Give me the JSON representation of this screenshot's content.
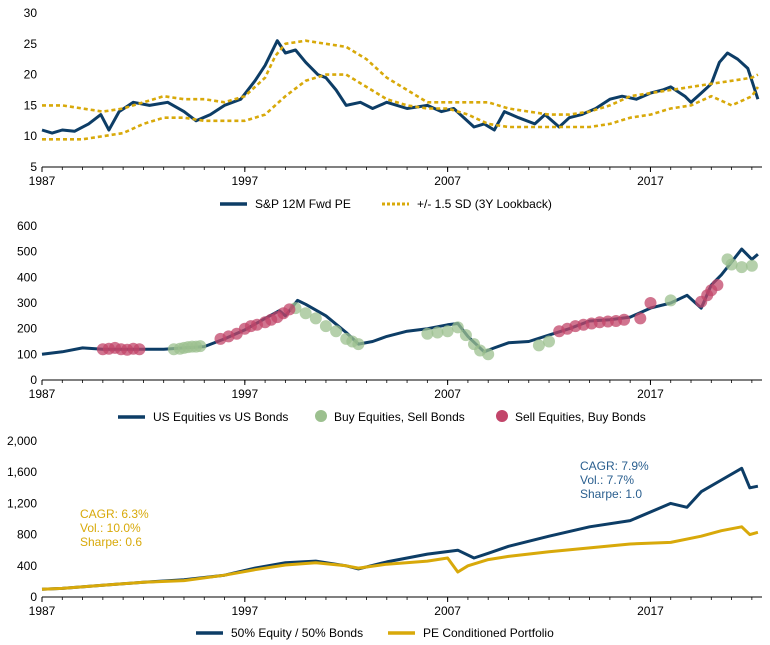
{
  "colors": {
    "navy": "#0d3d66",
    "gold": "#d8a90a",
    "green": "#9cc08f",
    "red": "#c2456a",
    "axis": "#000000"
  },
  "chart_data": [
    {
      "id": "pe",
      "type": "line",
      "ylim": [
        5,
        30
      ],
      "yticks": [
        "5",
        "10",
        "15",
        "20",
        "25",
        "30"
      ],
      "xlim": [
        1987,
        2022.5
      ],
      "xticks": [
        "1987",
        "1997",
        "2007",
        "2017"
      ],
      "legend_position": "bottom",
      "series": [
        {
          "name": "S&P 12M Fwd PE",
          "style": "solid",
          "color": "#0d3d66",
          "x": [
            1987.0,
            1987.5,
            1988.0,
            1988.6,
            1989.3,
            1989.9,
            1990.3,
            1990.8,
            1991.5,
            1992.3,
            1993.2,
            1994.0,
            1994.6,
            1995.3,
            1996.0,
            1996.8,
            1997.5,
            1998.0,
            1998.6,
            1999.0,
            1999.5,
            2000.0,
            2000.6,
            2001.0,
            2001.5,
            2002.0,
            2002.7,
            2003.3,
            2004.0,
            2005.0,
            2006.0,
            2006.7,
            2007.3,
            2007.8,
            2008.3,
            2008.8,
            2009.3,
            2009.8,
            2010.5,
            2011.3,
            2011.8,
            2012.5,
            2013.0,
            2013.6,
            2014.3,
            2015.0,
            2015.6,
            2016.3,
            2017.0,
            2017.6,
            2018.0,
            2018.7,
            2019.0,
            2019.5,
            2020.0,
            2020.4,
            2020.8,
            2021.3,
            2021.8,
            2022.0,
            2022.3
          ],
          "y": [
            11,
            10.5,
            11,
            10.8,
            12,
            13.5,
            11,
            14,
            15.5,
            15,
            15.5,
            14,
            12.5,
            13.5,
            15,
            16,
            19,
            21.5,
            25.5,
            23.5,
            24,
            22,
            20,
            19.5,
            17.5,
            15,
            15.5,
            14.5,
            15.5,
            14.5,
            15,
            14,
            14.5,
            13,
            11.5,
            12,
            11,
            14,
            13,
            12,
            13.5,
            11.5,
            13,
            13.5,
            14.5,
            16,
            16.5,
            16,
            17,
            17.5,
            18,
            16.5,
            15.5,
            17,
            18.5,
            22,
            23.5,
            22.5,
            21,
            19,
            16
          ]
        },
        {
          "name": "+/- 1.5 SD (3Y Lookback)",
          "style": "dashed",
          "color": "#d8a90a",
          "x": [
            1987.0,
            1988.0,
            1989.0,
            1990.0,
            1991.0,
            1992.0,
            1993.0,
            1994.0,
            1995.0,
            1996.0,
            1997.0,
            1998.0,
            1998.5,
            1999.0,
            2000.0,
            2001.0,
            2002.0,
            2003.0,
            2004.0,
            2005.0,
            2006.0,
            2007.0,
            2008.0,
            2009.0,
            2010.0,
            2011.0,
            2012.0,
            2013.0,
            2014.0,
            2015.0,
            2016.0,
            2017.0,
            2018.0,
            2019.0,
            2020.0,
            2021.0,
            2022.0,
            2022.3
          ],
          "y": [
            15,
            15,
            14.5,
            14,
            14.5,
            15.5,
            16.5,
            16,
            16,
            15.5,
            16.5,
            19.5,
            23,
            25,
            25.5,
            25,
            24.5,
            22.5,
            19.5,
            17.5,
            15.5,
            15.5,
            15.5,
            15.5,
            14.5,
            14,
            13.5,
            13.5,
            14,
            15,
            16.5,
            17,
            17.5,
            18,
            18.5,
            19,
            19.5,
            20
          ]
        },
        {
          "name": "",
          "style": "dashed",
          "color": "#d8a90a",
          "x": [
            1987.0,
            1988.0,
            1989.0,
            1990.0,
            1991.0,
            1992.0,
            1993.0,
            1994.0,
            1995.0,
            1996.0,
            1997.0,
            1998.0,
            1999.0,
            2000.0,
            2001.0,
            2002.0,
            2003.0,
            2004.0,
            2005.0,
            2006.0,
            2007.0,
            2008.0,
            2009.0,
            2010.0,
            2011.0,
            2012.0,
            2013.0,
            2014.0,
            2015.0,
            2016.0,
            2017.0,
            2018.0,
            2019.0,
            2020.0,
            2021.0,
            2022.0,
            2022.3
          ],
          "y": [
            9.5,
            9.5,
            9.5,
            10,
            10.5,
            12,
            13,
            13,
            12.5,
            12.5,
            12.5,
            13.5,
            16.5,
            19,
            20,
            20,
            18,
            16,
            15,
            14.5,
            14.5,
            13.5,
            12,
            11.5,
            11.5,
            11.5,
            11.5,
            11.5,
            12,
            13,
            13.5,
            14.5,
            15,
            16.5,
            15,
            16.5,
            18
          ]
        }
      ]
    },
    {
      "id": "uevb",
      "type": "line",
      "ylim": [
        0,
        600
      ],
      "yticks": [
        "0",
        "100",
        "200",
        "300",
        "400",
        "500",
        "600"
      ],
      "xlim": [
        1987,
        2022.5
      ],
      "xticks": [
        "1987",
        "1997",
        "2007",
        "2017"
      ],
      "legend_position": "bottom",
      "series": [
        {
          "name": "US Equities vs US Bonds",
          "style": "solid",
          "color": "#0d3d66",
          "x": [
            1987.0,
            1988.0,
            1989.0,
            1990.0,
            1991.0,
            1992.0,
            1993.0,
            1994.0,
            1995.0,
            1996.0,
            1997.0,
            1998.0,
            1998.7,
            1999.0,
            1999.6,
            2000.0,
            2001.0,
            2002.0,
            2002.6,
            2003.3,
            2004.0,
            2005.0,
            2006.0,
            2007.0,
            2007.5,
            2008.0,
            2008.8,
            2009.3,
            2010.0,
            2011.0,
            2012.0,
            2013.0,
            2014.0,
            2015.0,
            2016.0,
            2017.0,
            2018.0,
            2018.8,
            2019.5,
            2020.0,
            2020.5,
            2021.0,
            2021.5,
            2022.0,
            2022.3
          ],
          "y": [
            100,
            110,
            125,
            120,
            120,
            120,
            120,
            125,
            130,
            160,
            195,
            240,
            270,
            250,
            310,
            295,
            250,
            185,
            140,
            150,
            170,
            190,
            200,
            215,
            220,
            170,
            110,
            125,
            145,
            150,
            175,
            200,
            230,
            235,
            245,
            280,
            300,
            330,
            280,
            370,
            410,
            460,
            510,
            470,
            490
          ]
        }
      ],
      "signals": [
        {
          "name": "Buy Equities, Sell Bonds",
          "color": "#9cc08f",
          "x": [
            1993.5,
            1993.8,
            1994.0,
            1994.2,
            1994.4,
            1994.6,
            1994.8,
            1999.5,
            2000.0,
            2000.5,
            2001.0,
            2001.5,
            2002.0,
            2002.3,
            2002.6,
            2006.0,
            2006.5,
            2007.0,
            2007.5,
            2007.9,
            2008.3,
            2008.6,
            2009.0,
            2011.5,
            2012.0,
            2018.0,
            2020.8,
            2021.0,
            2021.5,
            2022.0
          ],
          "y": [
            120,
            122,
            125,
            128,
            130,
            130,
            132,
            280,
            260,
            240,
            210,
            190,
            160,
            150,
            140,
            180,
            185,
            190,
            205,
            175,
            140,
            115,
            100,
            135,
            150,
            310,
            470,
            450,
            440,
            445
          ]
        },
        {
          "name": "Sell Equities, Buy Bonds",
          "color": "#c2456a",
          "x": [
            1990.0,
            1990.3,
            1990.6,
            1990.9,
            1991.2,
            1991.5,
            1991.8,
            1995.8,
            1996.2,
            1996.6,
            1997.0,
            1997.3,
            1997.6,
            1998.0,
            1998.3,
            1998.6,
            1998.9,
            1999.2,
            2012.5,
            2012.9,
            2013.3,
            2013.7,
            2014.1,
            2014.5,
            2014.9,
            2015.3,
            2015.7,
            2016.5,
            2017.0,
            2019.5,
            2019.8,
            2020.0,
            2020.3
          ],
          "y": [
            120,
            122,
            125,
            120,
            118,
            122,
            120,
            160,
            170,
            180,
            200,
            210,
            215,
            225,
            235,
            245,
            260,
            275,
            190,
            200,
            210,
            215,
            220,
            225,
            228,
            230,
            235,
            240,
            300,
            305,
            330,
            350,
            370
          ]
        }
      ]
    },
    {
      "id": "perf",
      "type": "line",
      "ylim": [
        0,
        2000
      ],
      "yticks": [
        "0",
        "400",
        "800",
        "1,200",
        "1,600",
        "2,000"
      ],
      "xlim": [
        1987,
        2022.5
      ],
      "xticks": [
        "1987",
        "1997",
        "2007",
        "2017"
      ],
      "legend_position": "bottom",
      "series": [
        {
          "name": "50% Equity / 50% Bonds",
          "style": "solid",
          "color": "#0d3d66",
          "x": [
            1987.0,
            1988.0,
            1990.0,
            1992.0,
            1994.0,
            1996.0,
            1997.5,
            1999.0,
            2000.5,
            2002.0,
            2002.6,
            2004.0,
            2006.0,
            2007.5,
            2008.3,
            2009.0,
            2010.0,
            2012.0,
            2014.0,
            2016.0,
            2018.0,
            2018.8,
            2019.5,
            2020.5,
            2021.5,
            2021.9,
            2022.3
          ],
          "y": [
            100,
            110,
            150,
            190,
            220,
            280,
            370,
            440,
            460,
            400,
            360,
            450,
            550,
            600,
            500,
            560,
            650,
            780,
            900,
            980,
            1200,
            1150,
            1350,
            1500,
            1650,
            1400,
            1420
          ]
        },
        {
          "name": "PE Conditioned Portfolio",
          "style": "solid",
          "color": "#d8a90a",
          "x": [
            1987.0,
            1988.0,
            1990.0,
            1992.0,
            1994.0,
            1996.0,
            1997.5,
            1999.0,
            2000.5,
            2002.0,
            2002.6,
            2004.0,
            2006.0,
            2007.0,
            2007.5,
            2008.0,
            2009.0,
            2010.0,
            2012.0,
            2014.0,
            2016.0,
            2018.0,
            2019.5,
            2020.5,
            2021.5,
            2021.9,
            2022.3
          ],
          "y": [
            100,
            110,
            150,
            190,
            210,
            280,
            350,
            410,
            440,
            400,
            370,
            420,
            460,
            500,
            320,
            400,
            480,
            520,
            580,
            630,
            680,
            700,
            780,
            850,
            900,
            800,
            830
          ]
        }
      ],
      "annotations": [
        {
          "lines": [
            "CAGR: 7.9%",
            "Vol.: 7.7%",
            "Sharpe: 1.0"
          ],
          "color": "#2a5f8f"
        },
        {
          "lines": [
            "CAGR: 6.3%",
            "Vol.: 10.0%",
            "Sharpe: 0.6"
          ],
          "color": "#d8a90a"
        }
      ]
    }
  ]
}
